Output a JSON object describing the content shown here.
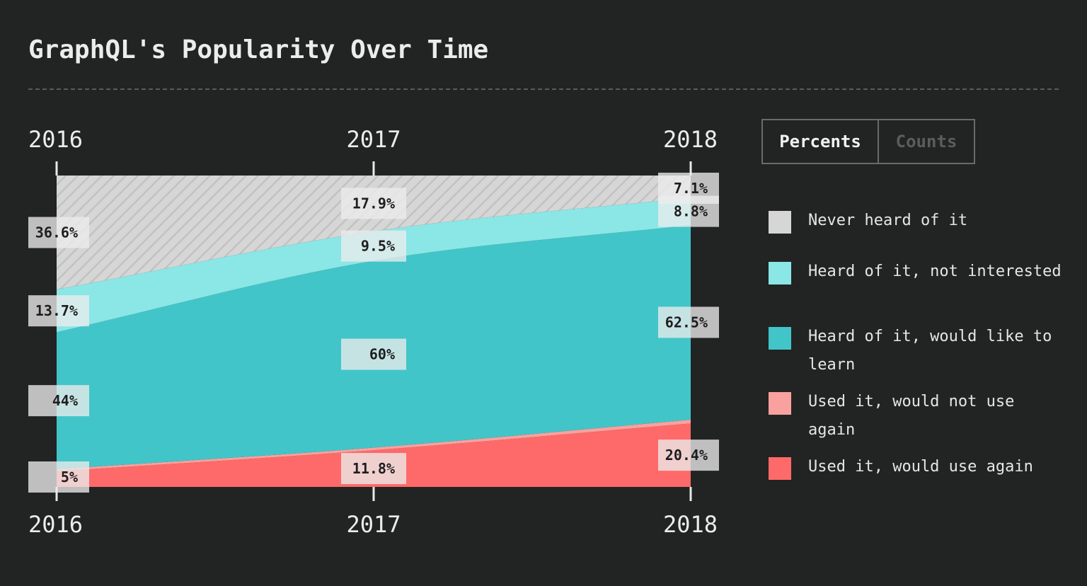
{
  "title": "GraphQL's Popularity Over Time",
  "toggle": {
    "percents_label": "Percents",
    "counts_label": "Counts",
    "active": "percents"
  },
  "legend": [
    {
      "label": "Never heard of it",
      "color": "#d6d6d6"
    },
    {
      "label": "Heard of it, not interested",
      "color": "#8be6e6"
    },
    {
      "label": "Heard of it, would like to learn",
      "color": "#42c5c8"
    },
    {
      "label": "Used it, would not use again",
      "color": "#f9a19e"
    },
    {
      "label": "Used it, would use again",
      "color": "#fd6a69"
    }
  ],
  "chart_data": {
    "type": "area",
    "stacked": true,
    "normalized": true,
    "x": [
      "2016",
      "2017",
      "2018"
    ],
    "series": [
      {
        "name": "Used it, would use again",
        "color": "#fd6a69",
        "values": [
          5,
          11.8,
          20.4
        ],
        "labels": [
          "5%",
          "11.8%",
          "20.4%"
        ]
      },
      {
        "name": "Used it, would not use again",
        "color": "#f9a19e",
        "values": [
          0.7,
          0.8,
          1.2
        ],
        "labels": [
          "",
          "",
          ""
        ]
      },
      {
        "name": "Heard of it, would like to learn",
        "color": "#42c5c8",
        "values": [
          44,
          60,
          62.5
        ],
        "labels": [
          "44%",
          "60%",
          "62.5%"
        ]
      },
      {
        "name": "Heard of it, not interested",
        "color": "#8be6e6",
        "values": [
          13.7,
          9.5,
          8.8
        ],
        "labels": [
          "13.7%",
          "9.5%",
          "8.8%"
        ]
      },
      {
        "name": "Never heard of it",
        "color": "#d6d6d6",
        "values": [
          36.6,
          17.9,
          7.1
        ],
        "labels": [
          "36.6%",
          "17.9%",
          "7.1%"
        ],
        "hatched": true
      }
    ],
    "ylim": [
      0,
      100
    ]
  }
}
